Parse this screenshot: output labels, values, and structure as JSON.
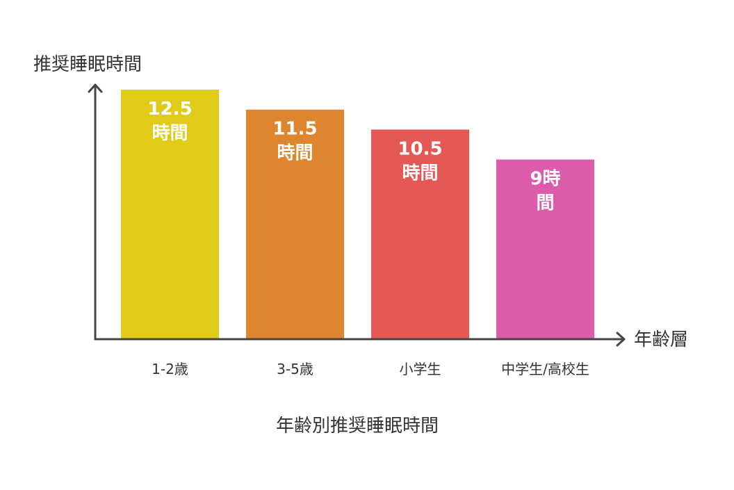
{
  "chart_data": {
    "type": "bar",
    "title": "年齢別推奨睡眠時間",
    "ylabel": "推奨睡眠時間",
    "xlabel": "年齢層",
    "categories": [
      "1-2歳",
      "3-5歳",
      "小学生",
      "中学生/高校生"
    ],
    "values": [
      12.5,
      11.5,
      10.5,
      9
    ],
    "data_labels": [
      [
        "12.5",
        "時間"
      ],
      [
        "11.5",
        "時間"
      ],
      [
        "10.5",
        "時間"
      ],
      [
        "9時",
        "間"
      ]
    ],
    "colors": [
      "#DFCB18",
      "#DE8530",
      "#E45955",
      "#DC5BAA"
    ],
    "ylim": [
      0,
      12.5
    ],
    "grid": false,
    "legend": "none"
  }
}
